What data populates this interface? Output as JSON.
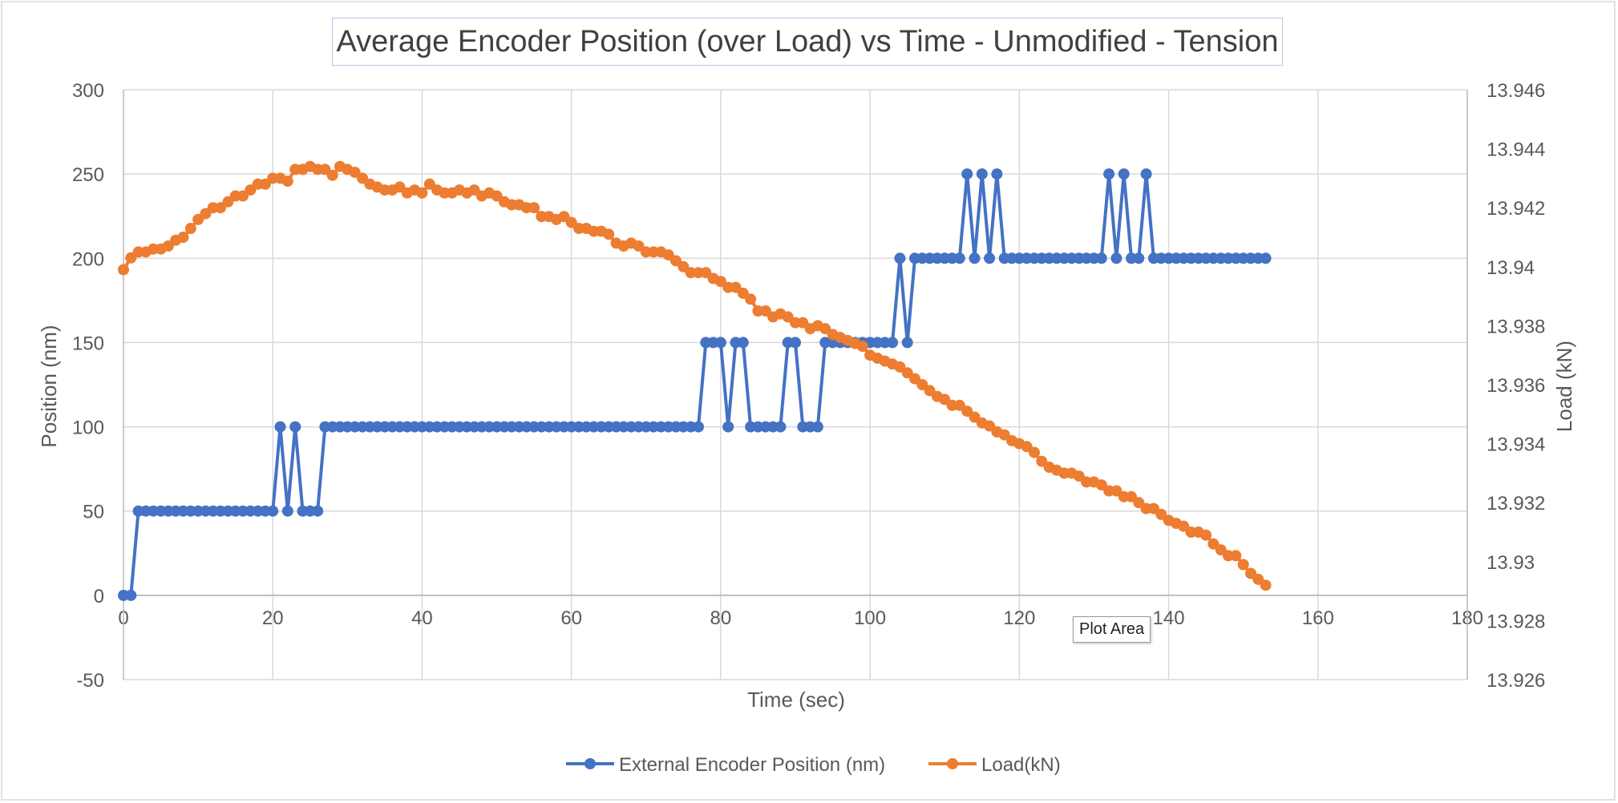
{
  "tooltip": "Plot Area",
  "chart_data": {
    "type": "line",
    "title": "Average Encoder Position (over Load) vs Time - Unmodified - Tension",
    "xlabel": "Time (sec)",
    "ylabel": "Position (nm)",
    "y2label": "Load (kN)",
    "xlim": [
      0,
      180
    ],
    "ylim": [
      -50,
      300
    ],
    "y2lim": [
      13.926,
      13.946
    ],
    "x_ticks": [
      "0",
      "20",
      "40",
      "60",
      "80",
      "100",
      "120",
      "140",
      "160",
      "180"
    ],
    "y_ticks": [
      "-50",
      "0",
      "50",
      "100",
      "150",
      "200",
      "250",
      "300"
    ],
    "y2_ticks": [
      "13.926",
      "13.928",
      "13.93",
      "13.932",
      "13.934",
      "13.936",
      "13.938",
      "13.94",
      "13.942",
      "13.944",
      "13.946"
    ],
    "grid": true,
    "legend_position": "bottom",
    "colors": {
      "position": "#4472c4",
      "load": "#ed7d31"
    },
    "series": [
      {
        "name": "External Encoder Position (nm)",
        "axis": "left",
        "x": [
          0,
          1,
          2,
          3,
          4,
          5,
          6,
          7,
          8,
          9,
          10,
          11,
          12,
          13,
          14,
          15,
          16,
          17,
          18,
          19,
          20,
          21,
          22,
          23,
          24,
          25,
          26,
          27,
          28,
          29,
          30,
          31,
          32,
          33,
          34,
          35,
          36,
          37,
          38,
          39,
          40,
          41,
          42,
          43,
          44,
          45,
          46,
          47,
          48,
          49,
          50,
          51,
          52,
          53,
          54,
          55,
          56,
          57,
          58,
          59,
          60,
          61,
          62,
          63,
          64,
          65,
          66,
          67,
          68,
          69,
          70,
          71,
          72,
          73,
          74,
          75,
          76,
          77,
          78,
          79,
          80,
          81,
          82,
          83,
          84,
          85,
          86,
          87,
          88,
          89,
          90,
          91,
          92,
          93,
          94,
          95,
          96,
          97,
          98,
          99,
          100,
          101,
          102,
          103,
          104,
          105,
          106,
          107,
          108,
          109,
          110,
          111,
          112,
          113,
          114,
          115,
          116,
          117,
          118,
          119,
          120,
          121,
          122,
          123,
          124,
          125,
          126,
          127,
          128,
          129,
          130,
          131,
          132,
          133,
          134,
          135,
          136,
          137,
          138,
          139,
          140,
          141,
          142,
          143,
          144,
          145,
          146,
          147,
          148,
          149,
          150,
          151,
          152,
          153
        ],
        "y": [
          0,
          0,
          50,
          50,
          50,
          50,
          50,
          50,
          50,
          50,
          50,
          50,
          50,
          50,
          50,
          50,
          50,
          50,
          50,
          50,
          50,
          100,
          50,
          100,
          50,
          50,
          50,
          100,
          100,
          100,
          100,
          100,
          100,
          100,
          100,
          100,
          100,
          100,
          100,
          100,
          100,
          100,
          100,
          100,
          100,
          100,
          100,
          100,
          100,
          100,
          100,
          100,
          100,
          100,
          100,
          100,
          100,
          100,
          100,
          100,
          100,
          100,
          100,
          100,
          100,
          100,
          100,
          100,
          100,
          100,
          100,
          100,
          100,
          100,
          100,
          100,
          100,
          100,
          150,
          150,
          150,
          100,
          150,
          150,
          100,
          100,
          100,
          100,
          100,
          150,
          150,
          100,
          100,
          100,
          150,
          150,
          150,
          150,
          150,
          150,
          150,
          150,
          150,
          150,
          200,
          150,
          200,
          200,
          200,
          200,
          200,
          200,
          200,
          250,
          200,
          250,
          200,
          250,
          200,
          200,
          200,
          200,
          200,
          200,
          200,
          200,
          200,
          200,
          200,
          200,
          200,
          200,
          250,
          200,
          250,
          200,
          200,
          250,
          200,
          200,
          200,
          200,
          200,
          200,
          200,
          200,
          200,
          200,
          200,
          200,
          200,
          200,
          200,
          200
        ]
      },
      {
        "name": "Load(kN)",
        "axis": "right",
        "x": [
          0,
          1,
          2,
          3,
          4,
          5,
          6,
          7,
          8,
          9,
          10,
          11,
          12,
          13,
          14,
          15,
          16,
          17,
          18,
          19,
          20,
          21,
          22,
          23,
          24,
          25,
          26,
          27,
          28,
          29,
          30,
          31,
          32,
          33,
          34,
          35,
          36,
          37,
          38,
          39,
          40,
          41,
          42,
          43,
          44,
          45,
          46,
          47,
          48,
          49,
          50,
          51,
          52,
          53,
          54,
          55,
          56,
          57,
          58,
          59,
          60,
          61,
          62,
          63,
          64,
          65,
          66,
          67,
          68,
          69,
          70,
          71,
          72,
          73,
          74,
          75,
          76,
          77,
          78,
          79,
          80,
          81,
          82,
          83,
          84,
          85,
          86,
          87,
          88,
          89,
          90,
          91,
          92,
          93,
          94,
          95,
          96,
          97,
          98,
          99,
          100,
          101,
          102,
          103,
          104,
          105,
          106,
          107,
          108,
          109,
          110,
          111,
          112,
          113,
          114,
          115,
          116,
          117,
          118,
          119,
          120,
          121,
          122,
          123,
          124,
          125,
          126,
          127,
          128,
          129,
          130,
          131,
          132,
          133,
          134,
          135,
          136,
          137,
          138,
          139,
          140,
          141,
          142,
          143,
          144,
          145,
          146,
          147,
          148,
          149,
          150,
          151,
          152,
          153
        ],
        "y": [
          13.9399,
          13.9403,
          13.9405,
          13.9405,
          13.9406,
          13.9406,
          13.9407,
          13.9409,
          13.941,
          13.9413,
          13.9416,
          13.9418,
          13.942,
          13.942,
          13.9422,
          13.9424,
          13.9424,
          13.9426,
          13.9428,
          13.9428,
          13.943,
          13.943,
          13.9429,
          13.9433,
          13.9433,
          13.9434,
          13.9433,
          13.9433,
          13.9431,
          13.9434,
          13.9433,
          13.9432,
          13.943,
          13.9428,
          13.9427,
          13.9426,
          13.9426,
          13.9427,
          13.9425,
          13.9426,
          13.9425,
          13.9428,
          13.9426,
          13.9425,
          13.9425,
          13.9426,
          13.9425,
          13.9426,
          13.9424,
          13.9425,
          13.9424,
          13.9422,
          13.9421,
          13.9421,
          13.942,
          13.942,
          13.9417,
          13.9417,
          13.9416,
          13.9417,
          13.9415,
          13.9413,
          13.9413,
          13.9412,
          13.9412,
          13.9411,
          13.9408,
          13.9407,
          13.9408,
          13.9407,
          13.9405,
          13.9405,
          13.9405,
          13.9404,
          13.9402,
          13.94,
          13.9398,
          13.9398,
          13.9398,
          13.9396,
          13.9395,
          13.9393,
          13.9393,
          13.9391,
          13.9389,
          13.9385,
          13.9385,
          13.9383,
          13.9384,
          13.9383,
          13.9381,
          13.9381,
          13.9379,
          13.938,
          13.9379,
          13.9377,
          13.9376,
          13.9375,
          13.9374,
          13.9373,
          13.937,
          13.9369,
          13.9368,
          13.9367,
          13.9366,
          13.9364,
          13.9362,
          13.936,
          13.9358,
          13.9356,
          13.9355,
          13.9353,
          13.9353,
          13.9351,
          13.9349,
          13.9347,
          13.9346,
          13.9344,
          13.9343,
          13.9341,
          13.934,
          13.9339,
          13.9337,
          13.9334,
          13.9332,
          13.9331,
          13.933,
          13.933,
          13.9329,
          13.9327,
          13.9327,
          13.9326,
          13.9324,
          13.9324,
          13.9322,
          13.9322,
          13.932,
          13.9318,
          13.9318,
          13.9316,
          13.9314,
          13.9313,
          13.9312,
          13.931,
          13.931,
          13.9309,
          13.9306,
          13.9304,
          13.9302,
          13.9302,
          13.9299,
          13.9296,
          13.9294,
          13.9292
        ]
      }
    ]
  }
}
